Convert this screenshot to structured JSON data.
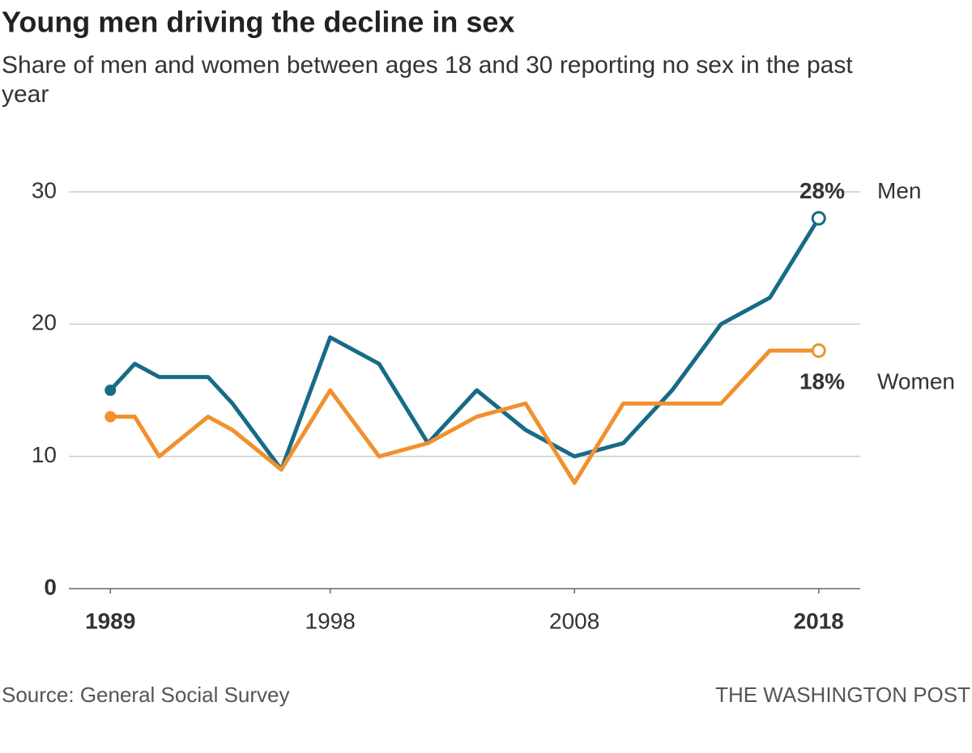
{
  "chart_data": {
    "type": "line",
    "title": "Young men driving the decline in sex",
    "subtitle": [
      "Share of men and women between ages 18 and 30 reporting no sex in the past",
      "year"
    ],
    "x": [
      1989,
      1990,
      1991,
      1993,
      1994,
      1996,
      1998,
      2000,
      2002,
      2004,
      2006,
      2008,
      2010,
      2012,
      2014,
      2016,
      2018
    ],
    "series": [
      {
        "name": "Men",
        "color": "#176b87",
        "values": [
          15,
          17,
          16,
          16,
          14,
          9,
          19,
          17,
          11,
          15,
          12,
          10,
          11,
          15,
          20,
          22,
          28
        ],
        "value_labels": [
          null,
          null,
          null,
          null,
          null,
          null,
          null,
          null,
          null,
          null,
          null,
          null,
          null,
          null,
          null,
          null,
          "28%"
        ]
      },
      {
        "name": "Women",
        "color": "#f0912e",
        "values": [
          13,
          13,
          10,
          13,
          12,
          9,
          15,
          10,
          11,
          13,
          14,
          8,
          14,
          14,
          14,
          18,
          18
        ],
        "value_labels": [
          null,
          null,
          null,
          null,
          null,
          null,
          null,
          null,
          null,
          null,
          null,
          null,
          null,
          null,
          null,
          null,
          "18%"
        ]
      }
    ],
    "xlim": [
      1987.3,
      2019.7
    ],
    "xticks": [
      1989,
      1998,
      2008,
      2018
    ],
    "ylim": [
      0,
      30
    ],
    "yticks": [
      0,
      10,
      20,
      30
    ],
    "grid": true,
    "source": "Source: General Social Survey",
    "credit": "THE WASHINGTON POST"
  }
}
